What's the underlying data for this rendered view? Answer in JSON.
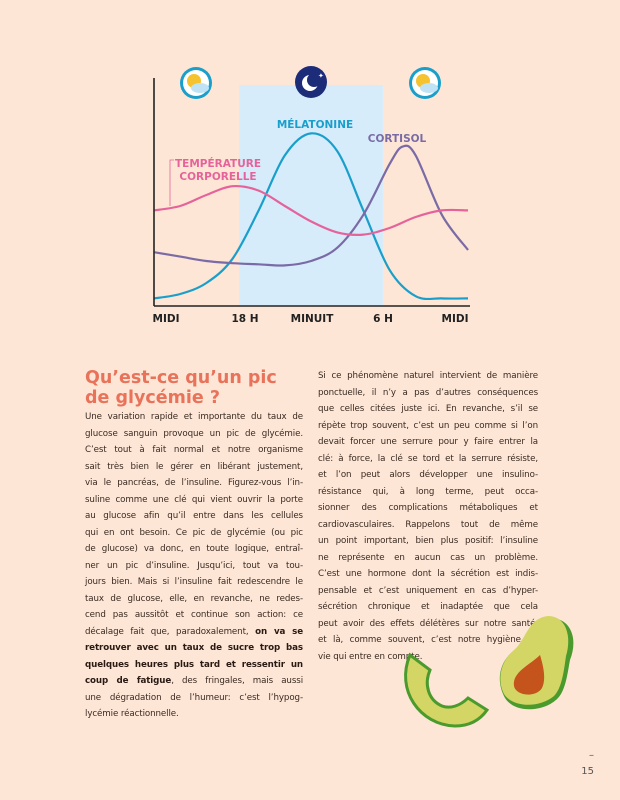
{
  "chart_data": {
    "type": "line",
    "title": "",
    "x_unit": "hours since noon",
    "xlim": [
      0,
      24
    ],
    "ylim": [
      0,
      100
    ],
    "x_tick_labels": [
      "MIDI",
      "18 H",
      "MINUIT",
      "6 H",
      "MIDI"
    ],
    "x_tick_values": [
      0,
      6,
      12,
      18,
      24
    ],
    "night_band": [
      6.5,
      17.5
    ],
    "icons": [
      "sun-cloud",
      "moon-stars",
      "sun-cloud"
    ],
    "series": [
      {
        "name": "MÉLATONINE",
        "color": "#1a9fcb",
        "x": [
          0,
          2,
          4,
          6,
          8,
          10,
          12,
          14,
          16,
          18,
          20,
          22,
          24
        ],
        "y": [
          3,
          5,
          10,
          21,
          43,
          68,
          78,
          70,
          43,
          16,
          4,
          3,
          3
        ]
      },
      {
        "name": "CORTISOL",
        "color": "#7a6ba6",
        "x": [
          0,
          2,
          4,
          6,
          8,
          10,
          12,
          14,
          16,
          18,
          19,
          20,
          22,
          24
        ],
        "y": [
          24,
          22,
          20,
          19,
          18.5,
          18,
          20,
          26,
          41,
          64,
          72,
          68,
          41,
          25
        ]
      },
      {
        "name": "TEMPÉRATURE CORPORELLE",
        "color": "#e5639a",
        "x": [
          0,
          2,
          4,
          6,
          8,
          10,
          12,
          14,
          16,
          18,
          20,
          22,
          24
        ],
        "y": [
          43,
          45,
          50,
          54,
          52,
          45,
          38,
          33,
          32,
          35,
          40,
          43,
          43
        ]
      }
    ]
  },
  "heading": [
    "Qu’est-ce qu’un pic",
    "de glycémie ?"
  ],
  "left_lines": [
    [
      [
        "Une variation rapide et importante du taux de",
        0
      ]
    ],
    [
      [
        "glucose sanguin provoque un pic de glycémie.",
        0
      ]
    ],
    [
      [
        "C’est tout à fait normal et notre organisme",
        0
      ]
    ],
    [
      [
        "sait très bien le gérer en libérant justement,",
        0
      ]
    ],
    [
      [
        "via le pancréas, de l’insuline. Figurez-vous l’in-",
        0
      ]
    ],
    [
      [
        "suline comme une clé qui vient ouvrir la porte",
        0
      ]
    ],
    [
      [
        "au glucose afin qu’il entre dans les cellules",
        0
      ]
    ],
    [
      [
        "qui en ont besoin. Ce pic de glycémie (ou pic",
        0
      ]
    ],
    [
      [
        "de glucose) va donc, en toute logique, entraî-",
        0
      ]
    ],
    [
      [
        "ner un pic d’insuline. Jusqu’ici, tout va tou-",
        0
      ]
    ],
    [
      [
        "jours bien. Mais si l’insuline fait redescendre le",
        0
      ]
    ],
    [
      [
        "taux de glucose, elle, en revanche, ne redes-",
        0
      ]
    ],
    [
      [
        "cend pas aussitôt et continue son action: ce",
        0
      ]
    ],
    [
      [
        "décalage fait que, paradoxalement, ",
        0
      ],
      [
        "on va se",
        1
      ]
    ],
    [
      [
        "retrouver avec un taux de sucre trop bas",
        1
      ]
    ],
    [
      [
        "quelques heures plus tard et ressentir un",
        1
      ]
    ],
    [
      [
        "coup de fatigue",
        1
      ],
      [
        ", des fringales, mais aussi",
        0
      ]
    ],
    [
      [
        "une dégradation de l’humeur: c’est l’hypog-",
        0
      ]
    ],
    [
      [
        "lycémie réactionnelle.",
        0
      ]
    ]
  ],
  "right_lines": [
    "Si ce phénomène naturel intervient de manière",
    "ponctuelle, il n’y a pas d’autres conséquences",
    "que celles citées juste ici. En revanche, s’il se",
    "répète trop souvent, c’est un peu comme si l’on",
    "devait forcer une serrure pour y faire entrer la",
    "clé: à force, la clé se tord et la serrure résiste,",
    "et l’on peut alors développer une insulino-",
    "résistance qui, à long terme, peut occa-",
    "sionner des complications métaboliques et",
    "cardiovasculaires. Rappelons tout de même",
    "un point important, bien plus positif: l’insuline",
    "ne représente en aucun cas un problème.",
    "C’est une hormone dont la sécrétion est indis-",
    "pensable et c’est uniquement en cas d’hyper-",
    "sécrétion chronique et inadaptée que cela",
    "peut avoir des effets délétères sur notre santé,",
    "et là, comme souvent, c’est notre hygiène de",
    "vie qui entre en compte."
  ],
  "page": {
    "dash": "–",
    "number": "15"
  }
}
